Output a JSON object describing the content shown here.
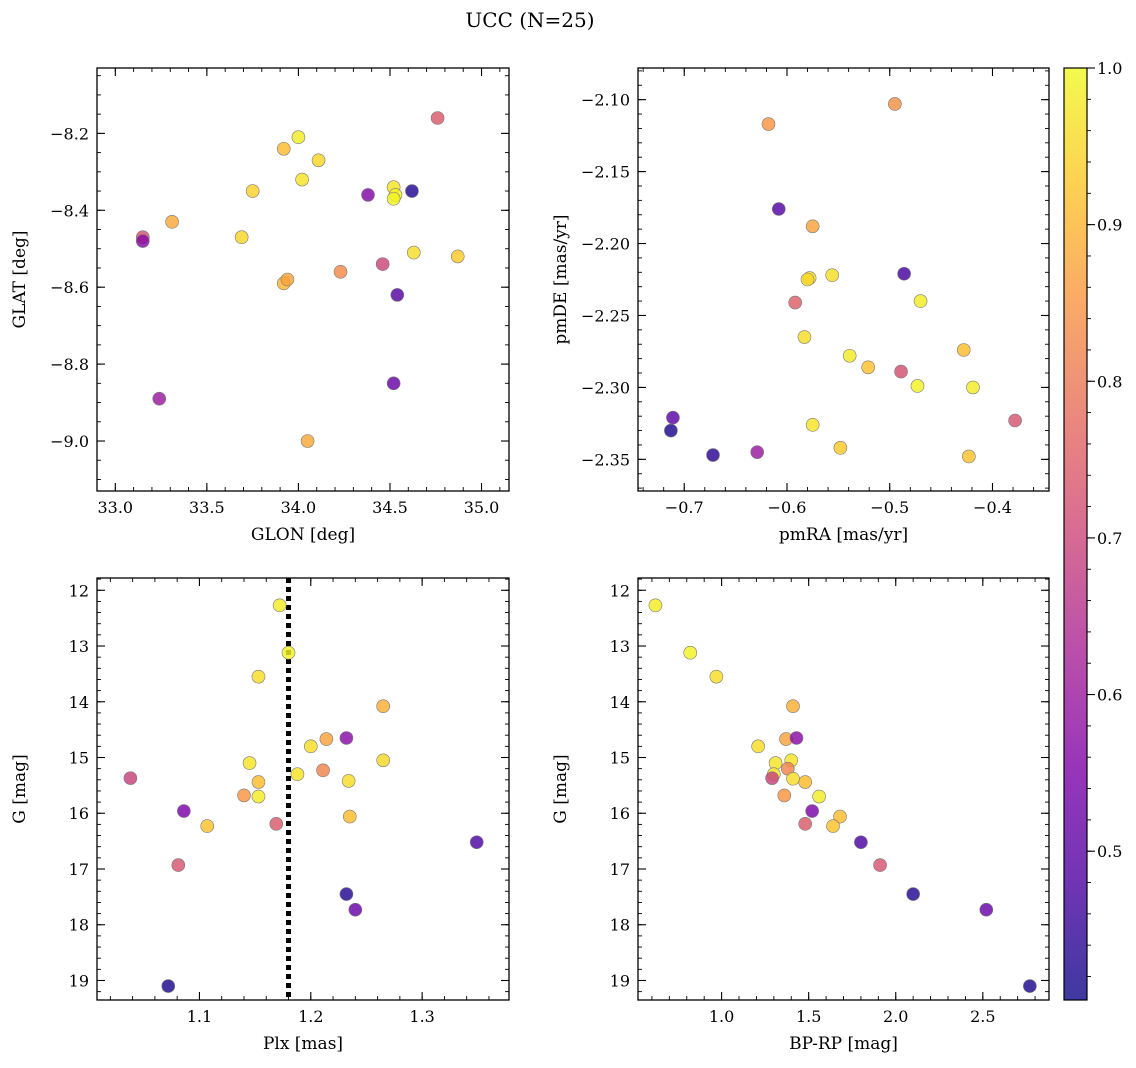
{
  "figure": {
    "title": "UCC (N=25)"
  },
  "colorbar": {
    "cmap": "plasma",
    "vmin": 0.405,
    "vmax": 1.0,
    "ticks": [
      0.5,
      0.6,
      0.7,
      0.8,
      0.9,
      1.0
    ],
    "tick_labels": [
      "0.5",
      "0.6",
      "0.7",
      "0.8",
      "0.9",
      "1.0"
    ]
  },
  "chart_data": [
    {
      "id": "p1",
      "type": "scatter",
      "title": "",
      "xlabel": "GLON [deg]",
      "ylabel": "GLAT [deg]",
      "xlim": [
        32.9,
        35.15
      ],
      "ylim": [
        -9.13,
        -8.03
      ],
      "xticks": [
        33.0,
        33.5,
        34.0,
        34.5,
        35.0
      ],
      "xtick_labels": [
        "33.0",
        "33.5",
        "34.0",
        "34.5",
        "35.0"
      ],
      "yticks": [
        -9.0,
        -8.8,
        -8.6,
        -8.4,
        -8.2
      ],
      "ytick_labels": [
        "−9.0",
        "−8.8",
        "−8.6",
        "−8.4",
        "−8.2"
      ],
      "xminor": 0.1,
      "yminor": 0.05,
      "x": [
        34.0,
        33.92,
        34.52,
        34.11,
        34.53,
        33.75,
        34.02,
        34.52,
        34.63,
        33.69,
        34.87,
        33.92,
        33.94,
        34.23,
        34.46,
        33.31,
        33.15,
        34.76,
        33.15,
        34.38,
        34.62,
        34.54,
        34.52,
        34.05,
        33.24
      ],
      "y": [
        -8.21,
        -8.24,
        -8.34,
        -8.27,
        -8.36,
        -8.35,
        -8.32,
        -8.37,
        -8.51,
        -8.47,
        -8.52,
        -8.59,
        -8.58,
        -8.56,
        -8.54,
        -8.43,
        -8.47,
        -8.16,
        -8.48,
        -8.36,
        -8.35,
        -8.62,
        -8.85,
        -9.0,
        -8.89
      ],
      "c": [
        0.98,
        0.91,
        0.97,
        0.95,
        0.99,
        0.94,
        0.97,
        0.99,
        0.96,
        0.95,
        0.93,
        0.9,
        0.87,
        0.83,
        0.7,
        0.88,
        0.73,
        0.74,
        0.57,
        0.56,
        0.43,
        0.49,
        0.52,
        0.88,
        0.6
      ]
    },
    {
      "id": "p2",
      "type": "scatter",
      "title": "",
      "xlabel": "pmRA [mas/yr]",
      "ylabel": "pmDE [mas/yr]",
      "xlim": [
        -0.745,
        -0.345
      ],
      "ylim": [
        -2.372,
        -2.078
      ],
      "xticks": [
        -0.7,
        -0.6,
        -0.5,
        -0.4
      ],
      "xtick_labels": [
        "−0.7",
        "−0.6",
        "−0.5",
        "−0.4"
      ],
      "yticks": [
        -2.35,
        -2.3,
        -2.25,
        -2.2,
        -2.15,
        -2.1
      ],
      "ytick_labels": [
        "−2.35",
        "−2.30",
        "−2.25",
        "−2.20",
        "−2.15",
        "−2.10"
      ],
      "xminor": 0.02,
      "yminor": 0.01,
      "x": [
        -0.618,
        -0.495,
        -0.608,
        -0.575,
        -0.578,
        -0.58,
        -0.556,
        -0.486,
        -0.47,
        -0.592,
        -0.583,
        -0.539,
        -0.521,
        -0.428,
        -0.489,
        -0.473,
        -0.419,
        -0.378,
        -0.711,
        -0.575,
        -0.548,
        -0.713,
        -0.672,
        -0.629,
        -0.423
      ],
      "y": [
        -2.117,
        -2.103,
        -2.176,
        -2.188,
        -2.224,
        -2.225,
        -2.222,
        -2.221,
        -2.24,
        -2.241,
        -2.265,
        -2.278,
        -2.286,
        -2.274,
        -2.289,
        -2.299,
        -2.3,
        -2.323,
        -2.321,
        -2.326,
        -2.342,
        -2.33,
        -2.347,
        -2.345,
        -2.348
      ],
      "c": [
        0.85,
        0.84,
        0.49,
        0.87,
        0.97,
        0.95,
        0.96,
        0.47,
        0.98,
        0.75,
        0.96,
        0.98,
        0.92,
        0.91,
        0.72,
        0.99,
        0.98,
        0.73,
        0.5,
        0.97,
        0.93,
        0.42,
        0.44,
        0.6,
        0.92
      ]
    },
    {
      "id": "p3",
      "type": "scatter",
      "title": "",
      "xlabel": "Plx [mas]",
      "ylabel": "G [mag]",
      "xlim": [
        1.008,
        1.378
      ],
      "ylim": [
        19.35,
        11.78
      ],
      "y_inverted": true,
      "xticks": [
        1.1,
        1.2,
        1.3
      ],
      "xtick_labels": [
        "1.1",
        "1.2",
        "1.3"
      ],
      "yticks": [
        12,
        13,
        14,
        15,
        16,
        17,
        18,
        19
      ],
      "ytick_labels": [
        "12",
        "13",
        "14",
        "15",
        "16",
        "17",
        "18",
        "19"
      ],
      "xminor": 0.02,
      "yminor": 0.2,
      "vline": {
        "x": 1.18,
        "style": "dotted",
        "color": "#000000"
      },
      "x": [
        1.172,
        1.18,
        1.153,
        1.265,
        1.2,
        1.214,
        1.232,
        1.145,
        1.188,
        1.265,
        1.153,
        1.234,
        1.211,
        1.14,
        1.153,
        1.235,
        1.038,
        1.086,
        1.107,
        1.169,
        1.081,
        1.349,
        1.232,
        1.24,
        1.072
      ],
      "y": [
        12.27,
        13.12,
        13.55,
        14.08,
        14.8,
        14.67,
        14.65,
        15.1,
        15.3,
        15.05,
        15.44,
        15.42,
        15.23,
        15.68,
        15.7,
        16.06,
        15.37,
        15.96,
        16.23,
        16.19,
        16.93,
        16.52,
        17.45,
        17.73,
        19.1
      ],
      "c": [
        0.98,
        0.99,
        0.96,
        0.89,
        0.96,
        0.87,
        0.57,
        0.97,
        0.97,
        0.95,
        0.91,
        0.96,
        0.82,
        0.85,
        0.98,
        0.91,
        0.69,
        0.55,
        0.92,
        0.74,
        0.73,
        0.48,
        0.43,
        0.52,
        0.42
      ]
    },
    {
      "id": "p4",
      "type": "scatter",
      "title": "",
      "xlabel": "BP-RP [mag]",
      "ylabel": "G [mag]",
      "xlim": [
        0.52,
        2.88
      ],
      "ylim": [
        19.35,
        11.78
      ],
      "y_inverted": true,
      "xticks": [
        1.0,
        1.5,
        2.0,
        2.5
      ],
      "xtick_labels": [
        "1.0",
        "1.5",
        "2.0",
        "2.5"
      ],
      "yticks": [
        12,
        13,
        14,
        15,
        16,
        17,
        18,
        19
      ],
      "ytick_labels": [
        "12",
        "13",
        "14",
        "15",
        "16",
        "17",
        "18",
        "19"
      ],
      "xminor": 0.1,
      "yminor": 0.2,
      "x": [
        0.62,
        0.82,
        0.97,
        1.41,
        1.21,
        1.37,
        1.43,
        1.31,
        1.4,
        1.38,
        1.48,
        1.41,
        1.3,
        1.36,
        1.56,
        1.68,
        1.29,
        1.52,
        1.64,
        1.48,
        1.91,
        1.8,
        2.1,
        2.52,
        2.77
      ],
      "y": [
        12.27,
        13.12,
        13.55,
        14.08,
        14.8,
        14.67,
        14.65,
        15.1,
        15.05,
        15.2,
        15.44,
        15.38,
        15.3,
        15.68,
        15.7,
        16.06,
        15.37,
        15.96,
        16.23,
        16.19,
        16.93,
        16.52,
        17.45,
        17.73,
        19.1
      ],
      "c": [
        0.98,
        0.99,
        0.96,
        0.89,
        0.96,
        0.87,
        0.57,
        0.97,
        0.97,
        0.82,
        0.91,
        0.96,
        0.97,
        0.85,
        0.98,
        0.91,
        0.69,
        0.55,
        0.92,
        0.74,
        0.73,
        0.48,
        0.43,
        0.52,
        0.42
      ]
    }
  ]
}
